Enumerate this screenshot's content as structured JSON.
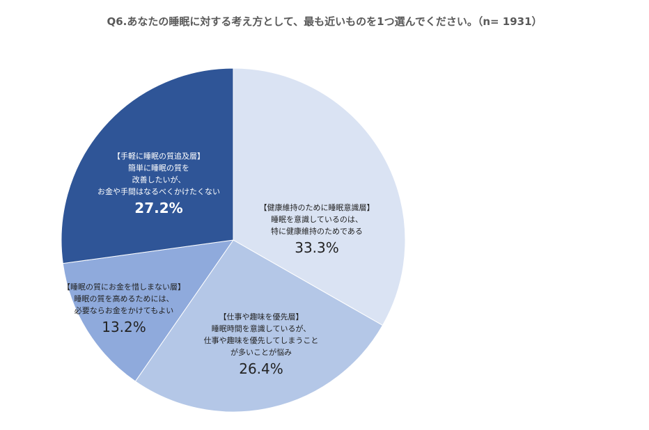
{
  "chart_data": {
    "type": "pie",
    "title": "Q6.あなたの睡眠に対する考え方として、最も近いものを1つ選んでください。（n= 1931）",
    "start": "top",
    "direction": "clockwise",
    "slices": [
      {
        "lines": [
          "【健康維持のために睡眠意識層】",
          "睡眠を意識しているのは、",
          "特に健康維持のためである"
        ],
        "value": 33.3,
        "pct_label": "33.3%",
        "color": "#dae3f3",
        "text_color": "#222222"
      },
      {
        "lines": [
          "【仕事や趣味を優先層】",
          "睡眠時間を意識しているが、",
          "仕事や趣味を優先してしまうこと",
          "が多いことが悩み"
        ],
        "value": 26.4,
        "pct_label": "26.4%",
        "color": "#b4c7e7",
        "text_color": "#222222"
      },
      {
        "lines": [
          "【睡眠の質にお金を惜しまない層】",
          "睡眠の質を高めるためには、",
          "必要ならお金をかけてもよい"
        ],
        "value": 13.2,
        "pct_label": "13.2%",
        "color": "#8faadc",
        "text_color": "#222222"
      },
      {
        "lines": [
          "【手軽に睡眠の質追及層】",
          "簡単に睡眠の質を",
          "改善したいが、",
          "お金や手間はなるべくかけたくない"
        ],
        "value": 27.2,
        "pct_label": "27.2%",
        "color": "#2f5597",
        "text_color": "#ffffff"
      }
    ]
  }
}
